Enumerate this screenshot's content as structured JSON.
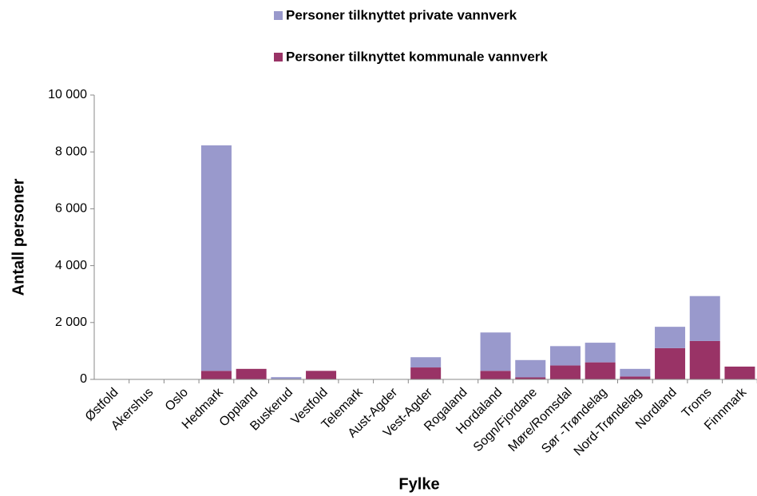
{
  "chart_data": {
    "type": "stacked_bar",
    "x_label": "Fylke",
    "y_label": "Antall personer",
    "categories": [
      "Østfold",
      "Akershus",
      "Oslo",
      "Hedmark",
      "Oppland",
      "Buskerud",
      "Vestfold",
      "Telemark",
      "Aust-Agder",
      "Vest-Agder",
      "Rogaland",
      "Hordaland",
      "Sogn/Fjordane",
      "Møre/Romsdal",
      "Sør -Trøndelag",
      "Nord-Trøndelag",
      "Nordland",
      "Troms",
      "Finnmark"
    ],
    "series": [
      {
        "name": "Personer tilknyttet private vannverk",
        "color": "#9999cc",
        "values": [
          0,
          0,
          0,
          7930,
          0,
          80,
          0,
          0,
          0,
          360,
          0,
          1350,
          610,
          680,
          690,
          270,
          750,
          1580,
          0
        ]
      },
      {
        "name": "Personer tilknyttet kommunale vannverk",
        "color": "#993366",
        "values": [
          0,
          0,
          0,
          300,
          370,
          0,
          300,
          0,
          0,
          420,
          0,
          300,
          70,
          490,
          600,
          100,
          1100,
          1350,
          450
        ]
      }
    ],
    "ylim": [
      0,
      10000
    ],
    "yticks": [
      0,
      {
        "value": 2000,
        "label": "2 000"
      },
      {
        "value": 4000,
        "label": "4 000"
      },
      {
        "value": 6000,
        "label": "6 000"
      },
      {
        "value": 8000,
        "label": "8 000"
      },
      {
        "value": 10000,
        "label": "10 000"
      }
    ],
    "grid": false,
    "legend": "top"
  }
}
